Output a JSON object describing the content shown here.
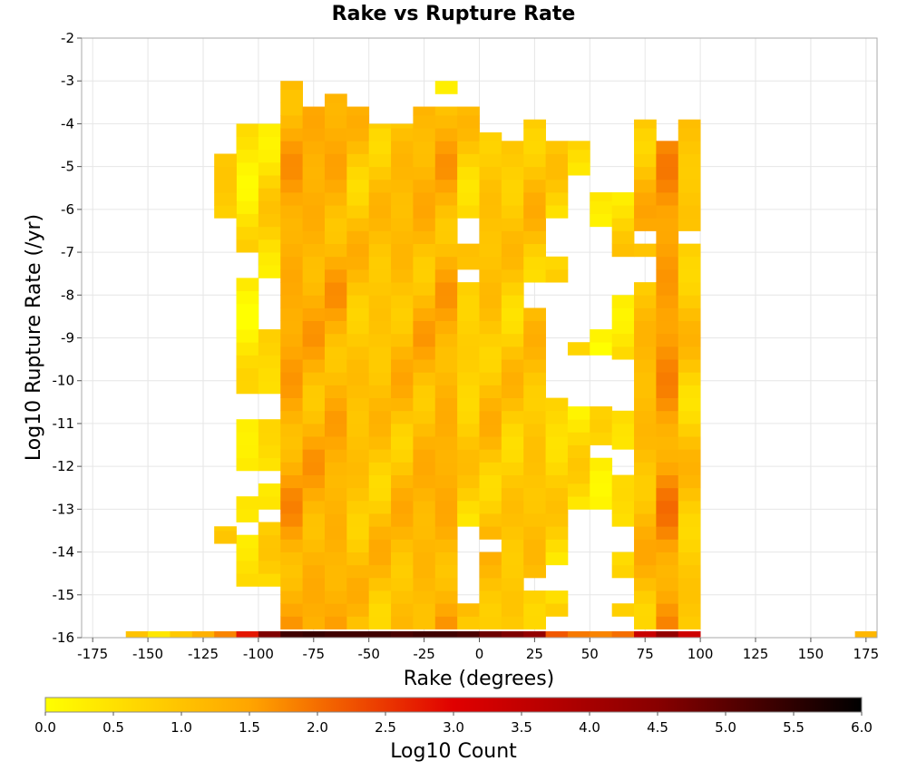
{
  "chart_data": {
    "type": "heatmap",
    "title": "Rake vs Rupture Rate",
    "xlabel": "Rake (degrees)",
    "ylabel": "Log10 Rupture Rate (/yr)",
    "xlim": [
      -180,
      180
    ],
    "ylim": [
      -16,
      -2
    ],
    "xticks": [
      -175,
      -150,
      -125,
      -100,
      -75,
      -50,
      -25,
      0,
      25,
      50,
      75,
      100,
      125,
      150,
      175
    ],
    "yticks": [
      -2,
      -3,
      -4,
      -5,
      -6,
      -7,
      -8,
      -9,
      -10,
      -11,
      -12,
      -13,
      -14,
      -15,
      -16
    ],
    "grid": true,
    "bin_width_x": 10,
    "bin_height_y": 0.3,
    "colorbar": {
      "label": "Log10 Count",
      "range": [
        0,
        6
      ],
      "ticks": [
        0.0,
        0.5,
        1.0,
        1.5,
        2.0,
        2.5,
        3.0,
        3.5,
        4.0,
        4.5,
        5.0,
        5.5,
        6.0
      ],
      "tick_labels": [
        "0.0",
        "0.5",
        "1.0",
        "1.5",
        "2.0",
        "2.5",
        "3.0",
        "3.5",
        "4.0",
        "4.5",
        "5.0",
        "5.5",
        "6.0"
      ],
      "colors": [
        {
          "v": 0.0,
          "c": "#ffff00"
        },
        {
          "v": 1.5,
          "c": "#ffa500"
        },
        {
          "v": 3.0,
          "c": "#e00000"
        },
        {
          "v": 4.5,
          "c": "#880000"
        },
        {
          "v": 6.0,
          "c": "#000000"
        }
      ]
    },
    "bottom_row": {
      "y": -16,
      "cells": [
        {
          "x": -155,
          "v": 1.0
        },
        {
          "x": -145,
          "v": 0.4
        },
        {
          "x": -135,
          "v": 0.9
        },
        {
          "x": -125,
          "v": 1.3
        },
        {
          "x": -115,
          "v": 1.8
        },
        {
          "x": -105,
          "v": 2.8
        },
        {
          "x": -95,
          "v": 4.6
        },
        {
          "x": -85,
          "v": 5.3
        },
        {
          "x": -75,
          "v": 5.4
        },
        {
          "x": -65,
          "v": 5.3
        },
        {
          "x": -55,
          "v": 5.3
        },
        {
          "x": -45,
          "v": 5.3
        },
        {
          "x": -35,
          "v": 5.2
        },
        {
          "x": -25,
          "v": 5.3
        },
        {
          "x": -15,
          "v": 5.3
        },
        {
          "x": -5,
          "v": 5.2
        },
        {
          "x": 5,
          "v": 4.8
        },
        {
          "x": 15,
          "v": 4.6
        },
        {
          "x": 25,
          "v": 4.3
        },
        {
          "x": 35,
          "v": 2.2
        },
        {
          "x": 45,
          "v": 1.9
        },
        {
          "x": 55,
          "v": 1.8
        },
        {
          "x": 65,
          "v": 2.0
        },
        {
          "x": 75,
          "v": 3.4
        },
        {
          "x": 85,
          "v": 4.3
        },
        {
          "x": 95,
          "v": 3.3
        },
        {
          "x": 175,
          "v": 1.2
        }
      ]
    },
    "columns": [
      {
        "x": -105,
        "y_min": -14.8,
        "y_max": -4.0,
        "base": 0.4,
        "gaps": [
          [
            -7.0,
            -7.5
          ],
          [
            -10.2,
            -10.9
          ],
          [
            -12.2,
            -12.6
          ],
          [
            -13.2,
            -13.5
          ],
          [
            -15.0,
            -15.8
          ]
        ]
      },
      {
        "x": -95,
        "y_min": -14.8,
        "y_max": -4.0,
        "base": 0.6,
        "gaps": [
          [
            -7.7,
            -8.8
          ],
          [
            -10.3,
            -10.8
          ],
          [
            -12.1,
            -12.5
          ],
          [
            -13.1,
            -13.4
          ],
          [
            -15.0,
            -15.8
          ]
        ]
      },
      {
        "x": -115,
        "y_min": -6.2,
        "y_max": -4.7,
        "base": 0.9,
        "gaps": []
      },
      {
        "x": -115,
        "y_min": -13.8,
        "y_max": -13.4,
        "base": 0.8,
        "gaps": []
      },
      {
        "x": -85,
        "y_min": -15.8,
        "y_max": -3.0,
        "base": 1.4,
        "gaps": []
      },
      {
        "x": -75,
        "y_min": -15.8,
        "y_max": -3.6,
        "base": 1.3,
        "gaps": []
      },
      {
        "x": -65,
        "y_min": -15.8,
        "y_max": -3.3,
        "base": 1.3,
        "gaps": []
      },
      {
        "x": -55,
        "y_min": -15.8,
        "y_max": -3.6,
        "base": 1.0,
        "gaps": []
      },
      {
        "x": -45,
        "y_min": -15.8,
        "y_max": -4.0,
        "base": 1.0,
        "gaps": []
      },
      {
        "x": -35,
        "y_min": -15.8,
        "y_max": -4.0,
        "base": 1.1,
        "gaps": []
      },
      {
        "x": -25,
        "y_min": -15.8,
        "y_max": -3.6,
        "base": 1.2,
        "gaps": []
      },
      {
        "x": -15,
        "y_min": -15.8,
        "y_max": -3.6,
        "base": 1.3,
        "gaps": []
      },
      {
        "x": -15,
        "y_min": -3.3,
        "y_max": -3.0,
        "base": 0.5,
        "gaps": []
      },
      {
        "x": -5,
        "y_min": -15.8,
        "y_max": -3.6,
        "base": 0.8,
        "gaps": [
          [
            -6.2,
            -6.7
          ],
          [
            -7.3,
            -7.8
          ],
          [
            -13.5,
            -15.2
          ]
        ]
      },
      {
        "x": 5,
        "y_min": -15.8,
        "y_max": -4.2,
        "base": 1.0,
        "gaps": [
          [
            -13.7,
            -14.1
          ]
        ]
      },
      {
        "x": 15,
        "y_min": -15.8,
        "y_max": -4.4,
        "base": 0.9,
        "gaps": []
      },
      {
        "x": 25,
        "y_min": -15.8,
        "y_max": -3.9,
        "base": 1.0,
        "gaps": [
          [
            -7.7,
            -8.4
          ],
          [
            -14.5,
            -14.8
          ]
        ]
      },
      {
        "x": 35,
        "y_min": -15.5,
        "y_max": -4.4,
        "base": 0.7,
        "gaps": [
          [
            -6.2,
            -7.0
          ],
          [
            -7.6,
            -10.3
          ],
          [
            -14.3,
            -15.0
          ]
        ]
      },
      {
        "x": 45,
        "y_min": -13.0,
        "y_max": -4.4,
        "base": 0.5,
        "gaps": [
          [
            -5.3,
            -9.0
          ],
          [
            -9.5,
            -10.7
          ]
        ]
      },
      {
        "x": 55,
        "y_min": -13.0,
        "y_max": -5.6,
        "base": 0.4,
        "gaps": [
          [
            -6.5,
            -8.8
          ],
          [
            -9.4,
            -10.7
          ],
          [
            -11.4,
            -11.9
          ]
        ]
      },
      {
        "x": 65,
        "y_min": -15.5,
        "y_max": -5.6,
        "base": 0.6,
        "gaps": [
          [
            -7.1,
            -8.0
          ],
          [
            -9.6,
            -10.8
          ],
          [
            -11.6,
            -12.2
          ],
          [
            -13.5,
            -13.9
          ],
          [
            -14.5,
            -15.1
          ]
        ]
      },
      {
        "x": 75,
        "y_min": -15.8,
        "y_max": -3.9,
        "base": 1.1,
        "gaps": [
          [
            -4.6,
            -4.8
          ],
          [
            -6.5,
            -6.8
          ],
          [
            -7.2,
            -7.8
          ]
        ]
      },
      {
        "x": 85,
        "y_min": -15.8,
        "y_max": -4.4,
        "base": 1.6,
        "gaps": []
      },
      {
        "x": 95,
        "y_min": -15.8,
        "y_max": -3.9,
        "base": 0.9,
        "gaps": [
          [
            -6.5,
            -6.8
          ]
        ]
      }
    ]
  }
}
